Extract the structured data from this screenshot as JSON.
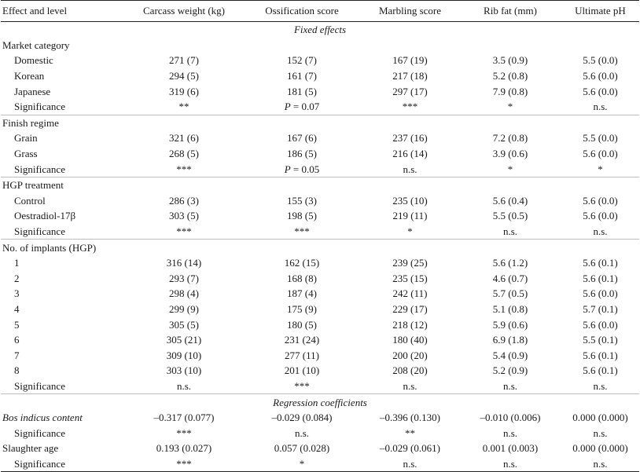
{
  "columns": [
    "Effect and level",
    "Carcass weight (kg)",
    "Ossification score",
    "Marbling score",
    "Rib fat (mm)",
    "Ultimate pH"
  ],
  "rows": [
    {
      "type": "section",
      "label": "Fixed effects"
    },
    {
      "type": "group",
      "label": "Market category"
    },
    {
      "type": "data",
      "label": "Domestic",
      "values": [
        "271 (7)",
        "152 (7)",
        "167 (19)",
        "3.5 (0.9)",
        "5.5 (0.0)"
      ]
    },
    {
      "type": "data",
      "label": "Korean",
      "values": [
        "294 (5)",
        "161 (7)",
        "217 (18)",
        "5.2 (0.8)",
        "5.6 (0.0)"
      ]
    },
    {
      "type": "data",
      "label": "Japanese",
      "values": [
        "319 (6)",
        "181 (5)",
        "297 (17)",
        "7.9 (0.8)",
        "5.6 (0.0)"
      ]
    },
    {
      "type": "data",
      "label": "Significance",
      "values": [
        "**",
        "P = 0.07",
        "***",
        "*",
        "n.s."
      ]
    },
    {
      "type": "group",
      "label": "Finish regime",
      "gap": true
    },
    {
      "type": "data",
      "label": "Grain",
      "values": [
        "321 (6)",
        "167 (6)",
        "237 (16)",
        "7.2 (0.8)",
        "5.5 (0.0)"
      ]
    },
    {
      "type": "data",
      "label": "Grass",
      "values": [
        "268 (5)",
        "186 (5)",
        "216 (14)",
        "3.9 (0.6)",
        "5.6 (0.0)"
      ]
    },
    {
      "type": "data",
      "label": "Significance",
      "values": [
        "***",
        "P = 0.05",
        "n.s.",
        "*",
        "*"
      ]
    },
    {
      "type": "group",
      "label": "HGP treatment",
      "gap": true
    },
    {
      "type": "data",
      "label": "Control",
      "values": [
        "286 (3)",
        "155 (3)",
        "235 (10)",
        "5.6 (0.4)",
        "5.6 (0.0)"
      ]
    },
    {
      "type": "data",
      "label": "Oestradiol-17β",
      "values": [
        "303 (5)",
        "198 (5)",
        "219 (11)",
        "5.5 (0.5)",
        "5.6 (0.0)"
      ]
    },
    {
      "type": "data",
      "label": "Significance",
      "values": [
        "***",
        "***",
        "*",
        "n.s.",
        "n.s."
      ]
    },
    {
      "type": "group",
      "label": "No. of implants (HGP)",
      "gap": true
    },
    {
      "type": "data",
      "label": "1",
      "values": [
        "316 (14)",
        "162 (15)",
        "239 (25)",
        "5.6 (1.2)",
        "5.6 (0.1)"
      ]
    },
    {
      "type": "data",
      "label": "2",
      "values": [
        "293 (7)",
        "168 (8)",
        "235 (15)",
        "4.6 (0.7)",
        "5.6 (0.1)"
      ]
    },
    {
      "type": "data",
      "label": "3",
      "values": [
        "298 (4)",
        "187 (4)",
        "242 (11)",
        "5.7 (0.5)",
        "5.6 (0.0)"
      ]
    },
    {
      "type": "data",
      "label": "4",
      "values": [
        "299 (9)",
        "175 (9)",
        "229 (17)",
        "5.1 (0.8)",
        "5.7 (0.1)"
      ]
    },
    {
      "type": "data",
      "label": "5",
      "values": [
        "305 (5)",
        "180 (5)",
        "218 (12)",
        "5.9 (0.6)",
        "5.6 (0.0)"
      ]
    },
    {
      "type": "data",
      "label": "6",
      "values": [
        "305 (21)",
        "231 (24)",
        "180 (40)",
        "6.9 (1.8)",
        "5.5 (0.1)"
      ]
    },
    {
      "type": "data",
      "label": "7",
      "values": [
        "309 (10)",
        "277 (11)",
        "200 (20)",
        "5.4 (0.9)",
        "5.6 (0.1)"
      ]
    },
    {
      "type": "data",
      "label": "8",
      "values": [
        "303 (10)",
        "201 (10)",
        "208 (20)",
        "5.2 (0.9)",
        "5.6 (0.1)"
      ]
    },
    {
      "type": "data",
      "label": "Significance",
      "values": [
        "n.s.",
        "***",
        "n.s.",
        "n.s.",
        "n.s."
      ]
    },
    {
      "type": "section",
      "label": "Regression coefficients",
      "gap": true
    },
    {
      "type": "group-data",
      "label": "Bos indicus content",
      "italic": true,
      "values": [
        "–0.317 (0.077)",
        "–0.029 (0.084)",
        "–0.396 (0.130)",
        "–0.010 (0.006)",
        "0.000 (0.000)"
      ]
    },
    {
      "type": "data",
      "label": "Significance",
      "values": [
        "***",
        "n.s.",
        "**",
        "n.s.",
        "n.s."
      ]
    },
    {
      "type": "group-data",
      "label": "Slaughter age",
      "values": [
        "0.193 (0.027)",
        "0.057 (0.028)",
        "–0.029 (0.061)",
        "0.001 (0.003)",
        "0.000 (0.000)"
      ]
    },
    {
      "type": "data",
      "label": "Significance",
      "values": [
        "***",
        "*",
        "n.s.",
        "n.s.",
        "n.s."
      ]
    }
  ]
}
